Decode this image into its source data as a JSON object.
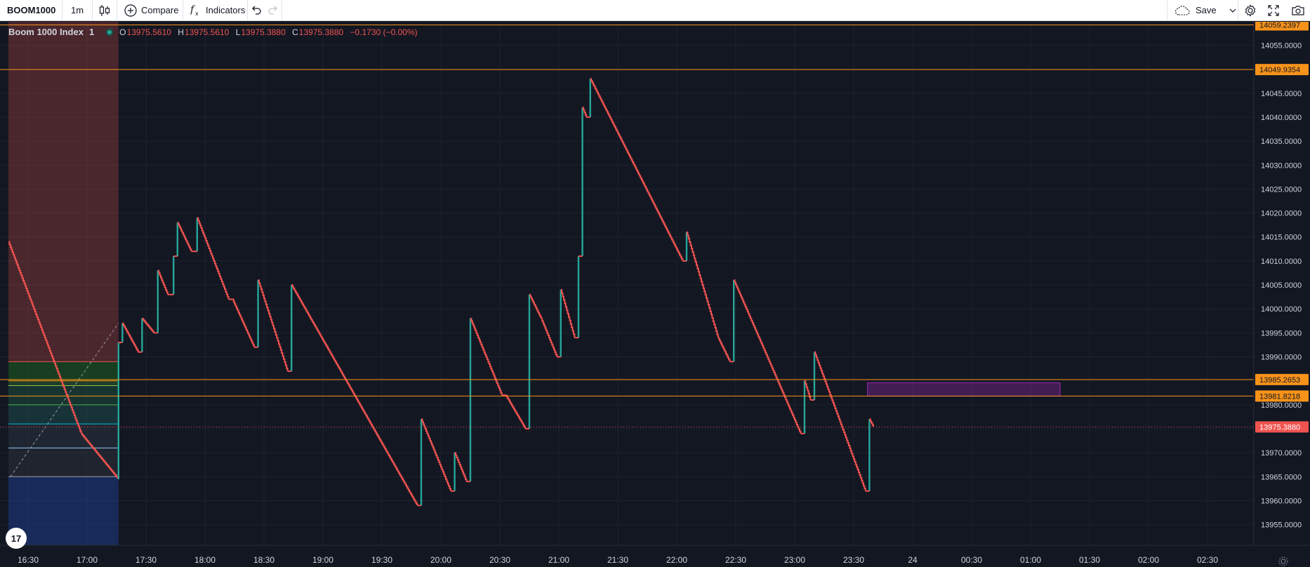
{
  "toolbar": {
    "symbol": "BOOM1000",
    "interval": "1m",
    "compare_label": "Compare",
    "indicators_label": "Indicators",
    "save_label": "Save"
  },
  "legend": {
    "title": "Boom 1000 Index",
    "interval": "1",
    "open_key": "O",
    "open": "13975.5610",
    "high_key": "H",
    "high": "13975.5610",
    "low_key": "L",
    "low": "13975.3880",
    "close_key": "C",
    "close": "13975.3880",
    "change": "−0.1730 (−0.00%)"
  },
  "logo_text": "17",
  "colors": {
    "background": "#131722",
    "up": "#26a69a",
    "down": "#ef5350",
    "hline": "#f7931a",
    "purple_box": "#9c27b0",
    "grid": "#1e222d"
  },
  "chart_data": {
    "type": "candlestick",
    "symbol": "Boom 1000 Index",
    "x_ticks": [
      "16:30",
      "17:00",
      "17:30",
      "18:00",
      "18:30",
      "19:00",
      "19:30",
      "20:00",
      "20:30",
      "21:00",
      "21:30",
      "22:00",
      "22:30",
      "23:00",
      "23:30",
      "24",
      "00:30",
      "01:00",
      "01:30",
      "02:00",
      "02:30"
    ],
    "y_ticks": [
      13955,
      13960,
      13965,
      13970,
      13975,
      13980,
      13985,
      13990,
      13995,
      14000,
      14005,
      14010,
      14015,
      14020,
      14025,
      14030,
      14035,
      14040,
      14045,
      14050,
      14055
    ],
    "ylim": [
      13950.7,
      14059.9
    ],
    "price_path": [
      [
        "16:20",
        14014
      ],
      [
        "16:57",
        13974
      ],
      [
        "17:16",
        13964.5
      ],
      [
        "17:16",
        13993
      ],
      [
        "17:18",
        13997
      ],
      [
        "17:26",
        13991
      ],
      [
        "17:28",
        13998
      ],
      [
        "17:34",
        13995
      ],
      [
        "17:36",
        14008
      ],
      [
        "17:41",
        14003
      ],
      [
        "17:44",
        14011
      ],
      [
        "17:46",
        14018
      ],
      [
        "17:53",
        14012
      ],
      [
        "17:56",
        14019
      ],
      [
        "18:12",
        14002
      ],
      [
        "18:14",
        14002
      ],
      [
        "18:25",
        13992
      ],
      [
        "18:27",
        14006
      ],
      [
        "18:42",
        13987
      ],
      [
        "18:44",
        14005
      ],
      [
        "19:48",
        13959
      ],
      [
        "19:50",
        13977
      ],
      [
        "20:05",
        13962
      ],
      [
        "20:07",
        13970
      ],
      [
        "20:13",
        13964
      ],
      [
        "20:15",
        13998
      ],
      [
        "20:31",
        13982
      ],
      [
        "20:33",
        13982
      ],
      [
        "20:43",
        13975
      ],
      [
        "20:45",
        14003
      ],
      [
        "20:51",
        13998
      ],
      [
        "20:59",
        13990
      ],
      [
        "21:01",
        14004
      ],
      [
        "21:08",
        13994
      ],
      [
        "21:10",
        14011
      ],
      [
        "21:12",
        14042
      ],
      [
        "21:14",
        14040
      ],
      [
        "21:16",
        14048
      ],
      [
        "22:03",
        14010
      ],
      [
        "22:05",
        14016
      ],
      [
        "22:21",
        13994
      ],
      [
        "22:27",
        13989
      ],
      [
        "22:29",
        14006
      ],
      [
        "23:03",
        13974
      ],
      [
        "23:05",
        13985
      ],
      [
        "23:08",
        13981
      ],
      [
        "23:10",
        13991
      ],
      [
        "23:36",
        13962
      ],
      [
        "23:38",
        13977
      ],
      [
        "23:40",
        13975.388
      ]
    ],
    "horizontal_lines": [
      {
        "price": 14059.2397,
        "label": "14059.2397",
        "color": "#f7931a"
      },
      {
        "price": 14049.9354,
        "label": "14049.9354",
        "color": "#f7931a"
      },
      {
        "price": 13985.2653,
        "label": "13985.2653",
        "color": "#f7931a"
      },
      {
        "price": 13981.8218,
        "label": "13981.8218",
        "color": "#f7931a"
      }
    ],
    "last_price": {
      "price": 13975.388,
      "label": "13975.3880",
      "color": "#ef5350"
    },
    "zones": [
      {
        "type": "sell-zone",
        "from": "16:20",
        "to": "17:16",
        "top": 14059.9,
        "bottom": 13989,
        "color": "#ef5350"
      },
      {
        "type": "buy-zone",
        "from": "16:20",
        "to": "17:16",
        "top": 13965,
        "bottom": 13950.7,
        "color": "#2962ff"
      },
      {
        "type": "fib-retracement",
        "from": "16:20",
        "to": "17:16",
        "levels": [
          13989,
          13985,
          13984,
          13980,
          13976,
          13971,
          13965
        ]
      },
      {
        "type": "rectangle",
        "from": "23:37",
        "to": "01:15",
        "top": 13984.6,
        "bottom": 13981.8,
        "color": "#9c27b0"
      }
    ],
    "trend_line": {
      "from": [
        "16:21",
        13965
      ],
      "to": [
        "17:16",
        13997
      ]
    }
  }
}
